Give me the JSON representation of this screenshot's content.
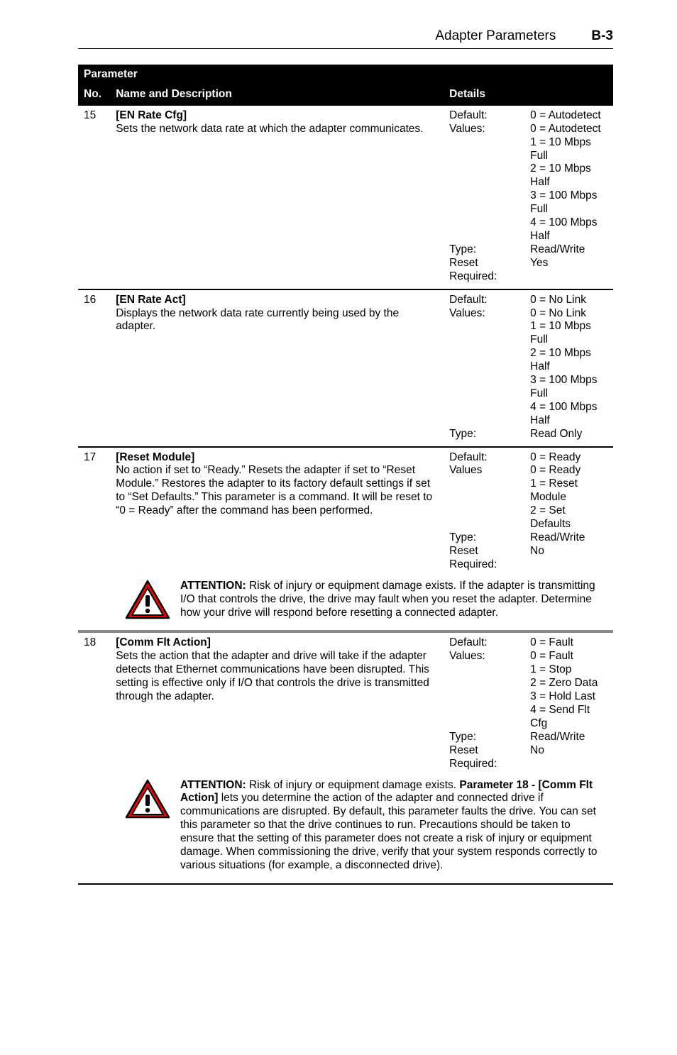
{
  "header": {
    "title": "Adapter Parameters",
    "page": "B-3"
  },
  "table": {
    "head": {
      "parameter": "Parameter",
      "no": "No.",
      "name": "Name and Description",
      "details": "Details"
    },
    "detail_labels": {
      "default": "Default:",
      "values": "Values:",
      "type": "Type:",
      "reset": "Reset Required:"
    },
    "rows": [
      {
        "no": "15",
        "name": "[EN Rate Cfg]",
        "desc": "Sets the network data rate at which the adapter communicates.",
        "default": "0 = Autodetect",
        "values": "0 = Autodetect\n1 = 10 Mbps Full\n2 = 10 Mbps Half\n3 = 100 Mbps Full\n4 = 100 Mbps Half",
        "type": "Read/Write",
        "reset": "Yes"
      },
      {
        "no": "16",
        "name": "[EN Rate Act]",
        "desc": "Displays the network data rate currently being used by the adapter.",
        "default": "0 = No Link",
        "values": "0 = No Link\n1 = 10 Mbps Full\n2 = 10 Mbps Half\n3 = 100 Mbps Full\n4 = 100 Mbps Half",
        "type": "Read Only",
        "reset": null
      },
      {
        "no": "17",
        "name": "[Reset Module]",
        "desc": "No action if set to “Ready.” Resets the adapter if set to “Reset Module.” Restores the adapter to its factory default settings if set to “Set Defaults.” This parameter is a command. It will be reset to “0 = Ready” after the command has been performed.",
        "default": "0 = Ready",
        "values_label_override": "Values",
        "values": "0 = Ready\n1 = Reset Module\n2 = Set Defaults",
        "type": "Read/Write",
        "reset": "No"
      },
      {
        "attention": true,
        "indented": true,
        "thick": false,
        "prefix": "ATTENTION:",
        "text": " Risk of injury or equipment damage exists. If the adapter is transmitting I/O that controls the drive, the drive may fault when you reset the adapter. Determine how your drive will respond before resetting a connected adapter."
      },
      {
        "no": "18",
        "thick": true,
        "name": "[Comm Flt Action]",
        "desc": "Sets the action that the adapter and drive will take if the adapter detects that Ethernet communications have been disrupted. This setting is effective only if I/O that controls the drive is transmitted through the adapter.",
        "default": "0 = Fault",
        "values": "0 = Fault\n1 = Stop\n2 = Zero Data\n3 = Hold Last\n4 = Send Flt Cfg",
        "type": "Read/Write",
        "reset": "No"
      },
      {
        "attention": true,
        "indented": true,
        "thick": true,
        "prefix": "ATTENTION:",
        "mid_bold": "Parameter 18 - [Comm Flt Action]",
        "text_before": " Risk of injury or equipment damage exists. ",
        "text_after": " lets you determine the action of the adapter and connected drive if communications are disrupted. By default, this parameter faults the drive. You can set this parameter so that the drive continues to run. Precautions should be taken to ensure that the setting of this parameter does not create a risk of injury or equipment damage. When commissioning the drive, verify that your system responds correctly to various situations (for example, a disconnected drive)."
      }
    ]
  },
  "icon": {
    "stroke": "#000000",
    "fill_outer": "#ff0000",
    "fill_inner": "#ffffff"
  }
}
